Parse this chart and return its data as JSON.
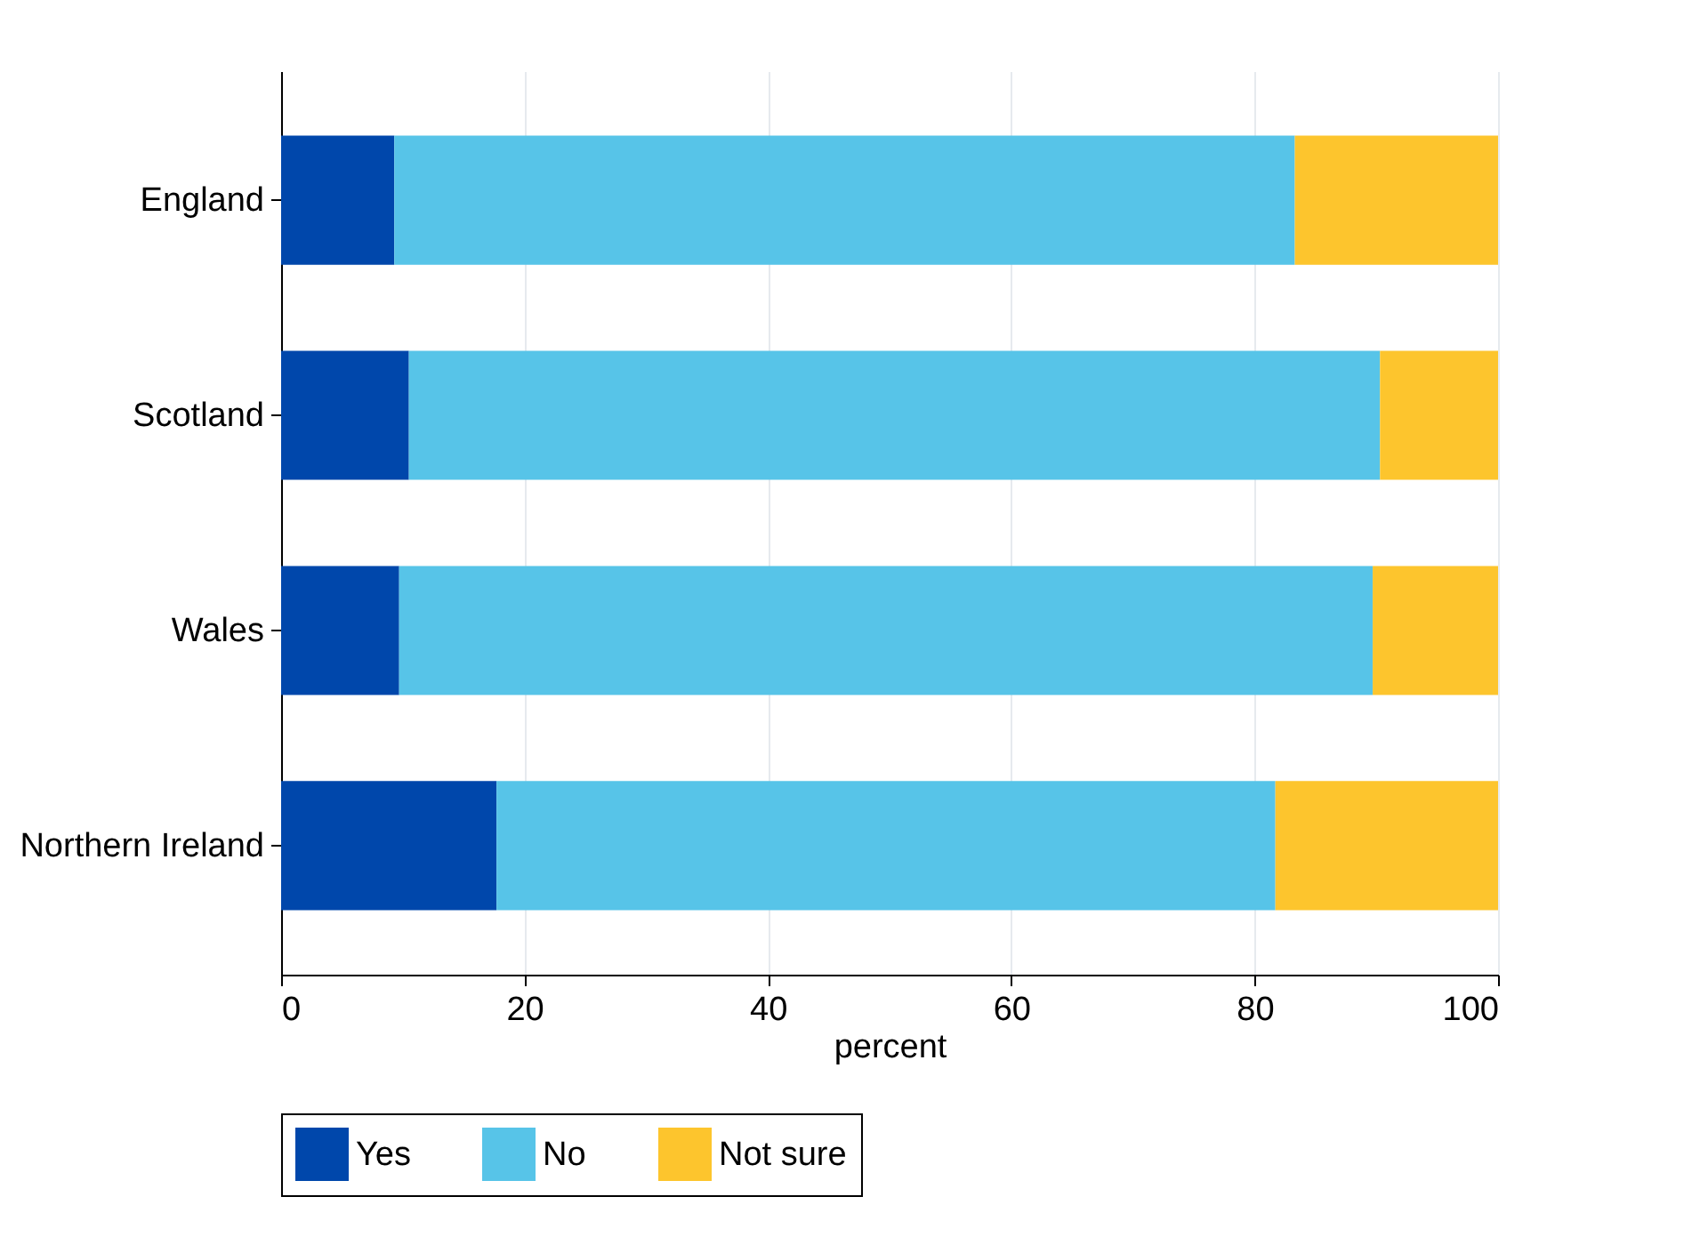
{
  "chart_data": {
    "type": "bar",
    "orientation": "horizontal",
    "stacked": true,
    "xlabel": "percent",
    "categories": [
      "England",
      "Scotland",
      "Wales",
      "Northern Ireland"
    ],
    "series": [
      {
        "name": "Yes",
        "color": "#0047ab",
        "values": [
          9.3,
          10.5,
          9.7,
          17.7
        ]
      },
      {
        "name": "No",
        "color": "#57c4e8",
        "values": [
          74.0,
          79.8,
          80.0,
          64.0
        ]
      },
      {
        "name": "Not sure",
        "color": "#fdc52d",
        "values": [
          16.7,
          9.7,
          10.3,
          18.3
        ]
      }
    ],
    "xlim": [
      0,
      100
    ],
    "xticks": [
      0,
      20,
      40,
      60,
      80,
      100
    ],
    "grid": "x",
    "legend": "bottom"
  }
}
